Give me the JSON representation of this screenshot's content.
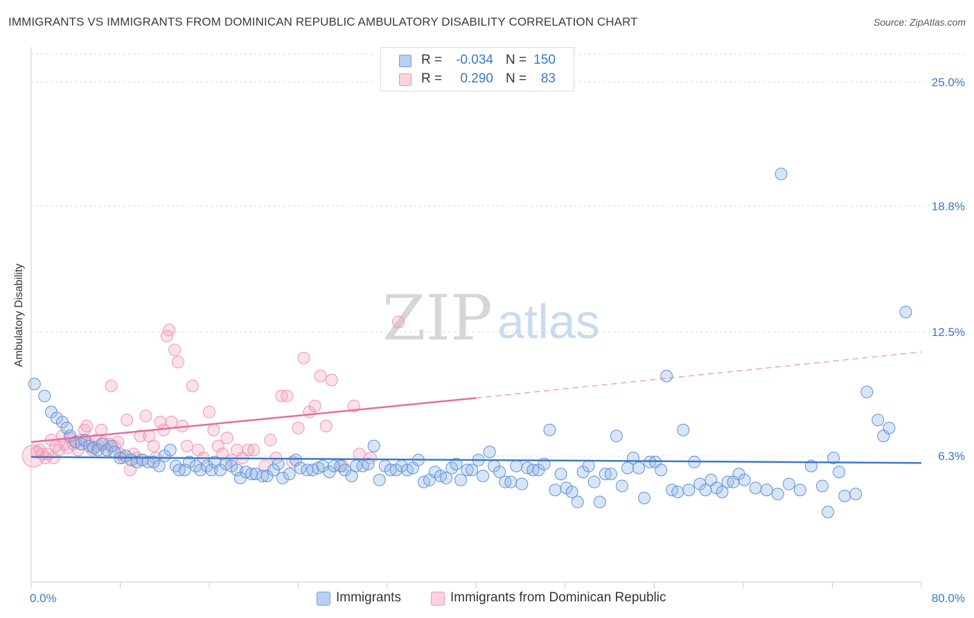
{
  "title": "IMMIGRANTS VS IMMIGRANTS FROM DOMINICAN REPUBLIC AMBULATORY DISABILITY CORRELATION CHART",
  "source": "Source: ZipAtlas.com",
  "watermark": {
    "zip": "ZIP",
    "atlas": "atlas"
  },
  "legend_top": {
    "rows": [
      {
        "r_label": "R =",
        "r_value": "-0.034",
        "n_label": "N =",
        "n_value": "150",
        "color": "#8fb5e6"
      },
      {
        "r_label": "R =",
        "r_value": "0.290",
        "n_label": "N =",
        "n_value": "83",
        "color": "#f4a9c0"
      }
    ]
  },
  "legend_bottom": {
    "items": [
      {
        "label": "Immigrants",
        "color": "#8fb5e6"
      },
      {
        "label": "Immigrants from Dominican Republic",
        "color": "#f4a9c0"
      }
    ]
  },
  "chart_data": {
    "type": "scatter",
    "title": "IMMIGRANTS VS IMMIGRANTS FROM DOMINICAN REPUBLIC AMBULATORY DISABILITY CORRELATION CHART",
    "xlabel": "",
    "ylabel": "Ambulatory Disability",
    "xlim": [
      0,
      80
    ],
    "ylim": [
      0,
      26.4
    ],
    "x_tick_labels": [
      "0.0%",
      "80.0%"
    ],
    "y_ticks": [
      6.3,
      12.5,
      18.8,
      25.0
    ],
    "y_tick_labels": [
      "6.3%",
      "12.5%",
      "18.8%",
      "25.0%"
    ],
    "grid": true,
    "legend_position": "top-center",
    "colors": {
      "immigrants": "#3b78c9",
      "dominican": "#e86c9b"
    },
    "series": [
      {
        "name": "Immigrants",
        "points": [
          [
            0.3,
            9.9
          ],
          [
            1.2,
            9.3
          ],
          [
            1.8,
            8.5
          ],
          [
            2.3,
            8.2
          ],
          [
            2.8,
            8.0
          ],
          [
            3.2,
            7.7
          ],
          [
            3.5,
            7.3
          ],
          [
            4.0,
            7.0
          ],
          [
            4.5,
            6.9
          ],
          [
            4.8,
            7.1
          ],
          [
            5.2,
            6.8
          ],
          [
            5.6,
            6.7
          ],
          [
            6.0,
            6.6
          ],
          [
            6.4,
            6.9
          ],
          [
            6.8,
            6.6
          ],
          [
            7.2,
            6.8
          ],
          [
            7.5,
            6.5
          ],
          [
            8.0,
            6.2
          ],
          [
            8.5,
            6.3
          ],
          [
            9.0,
            6.1
          ],
          [
            9.5,
            6.0
          ],
          [
            10.0,
            6.1
          ],
          [
            10.5,
            6.0
          ],
          [
            11.0,
            6.0
          ],
          [
            11.5,
            5.8
          ],
          [
            12.0,
            6.3
          ],
          [
            12.5,
            6.6
          ],
          [
            13.0,
            5.8
          ],
          [
            13.3,
            5.6
          ],
          [
            13.8,
            5.6
          ],
          [
            14.2,
            6.0
          ],
          [
            14.8,
            5.8
          ],
          [
            15.2,
            5.6
          ],
          [
            15.8,
            5.8
          ],
          [
            16.2,
            5.6
          ],
          [
            16.5,
            6.0
          ],
          [
            17.0,
            5.6
          ],
          [
            17.5,
            5.9
          ],
          [
            18.0,
            5.8
          ],
          [
            18.5,
            5.6
          ],
          [
            18.8,
            5.2
          ],
          [
            19.3,
            5.5
          ],
          [
            19.8,
            5.4
          ],
          [
            20.2,
            5.4
          ],
          [
            20.8,
            5.3
          ],
          [
            21.2,
            5.3
          ],
          [
            21.8,
            5.6
          ],
          [
            22.2,
            5.9
          ],
          [
            22.6,
            5.2
          ],
          [
            23.2,
            5.4
          ],
          [
            23.8,
            6.1
          ],
          [
            24.2,
            5.7
          ],
          [
            24.8,
            5.6
          ],
          [
            25.3,
            5.6
          ],
          [
            25.8,
            5.7
          ],
          [
            26.2,
            5.8
          ],
          [
            26.8,
            5.5
          ],
          [
            27.2,
            5.8
          ],
          [
            27.8,
            5.8
          ],
          [
            28.2,
            5.6
          ],
          [
            28.8,
            5.3
          ],
          [
            29.2,
            5.8
          ],
          [
            29.8,
            5.8
          ],
          [
            30.3,
            5.9
          ],
          [
            30.8,
            6.8
          ],
          [
            31.3,
            5.1
          ],
          [
            31.8,
            5.8
          ],
          [
            32.3,
            5.6
          ],
          [
            32.8,
            5.6
          ],
          [
            33.3,
            5.8
          ],
          [
            33.8,
            5.6
          ],
          [
            34.3,
            5.7
          ],
          [
            34.8,
            6.1
          ],
          [
            35.3,
            5.0
          ],
          [
            35.8,
            5.1
          ],
          [
            36.3,
            5.5
          ],
          [
            36.8,
            5.3
          ],
          [
            37.3,
            5.2
          ],
          [
            37.8,
            5.7
          ],
          [
            38.2,
            5.9
          ],
          [
            38.6,
            5.1
          ],
          [
            39.2,
            5.6
          ],
          [
            39.6,
            5.6
          ],
          [
            40.2,
            6.1
          ],
          [
            40.6,
            5.3
          ],
          [
            41.2,
            6.5
          ],
          [
            41.6,
            5.8
          ],
          [
            42.1,
            5.5
          ],
          [
            42.6,
            5.0
          ],
          [
            43.1,
            5.0
          ],
          [
            43.6,
            5.8
          ],
          [
            44.1,
            4.9
          ],
          [
            44.6,
            5.7
          ],
          [
            45.1,
            5.6
          ],
          [
            45.6,
            5.6
          ],
          [
            46.1,
            5.9
          ],
          [
            46.6,
            7.6
          ],
          [
            47.1,
            4.6
          ],
          [
            47.6,
            5.4
          ],
          [
            48.1,
            4.7
          ],
          [
            48.6,
            4.5
          ],
          [
            49.1,
            4.0
          ],
          [
            49.6,
            5.5
          ],
          [
            50.1,
            5.8
          ],
          [
            50.6,
            5.0
          ],
          [
            51.1,
            4.0
          ],
          [
            51.6,
            5.4
          ],
          [
            52.1,
            5.4
          ],
          [
            52.6,
            7.3
          ],
          [
            53.1,
            4.8
          ],
          [
            53.6,
            5.7
          ],
          [
            54.1,
            6.2
          ],
          [
            54.6,
            5.7
          ],
          [
            55.1,
            4.2
          ],
          [
            55.6,
            6.0
          ],
          [
            56.1,
            6.0
          ],
          [
            56.6,
            5.6
          ],
          [
            57.1,
            10.3
          ],
          [
            57.6,
            4.6
          ],
          [
            58.1,
            4.5
          ],
          [
            58.6,
            7.6
          ],
          [
            59.1,
            4.6
          ],
          [
            59.6,
            6.0
          ],
          [
            60.1,
            4.9
          ],
          [
            60.6,
            4.6
          ],
          [
            61.1,
            5.1
          ],
          [
            61.6,
            4.7
          ],
          [
            62.1,
            4.5
          ],
          [
            62.6,
            5.0
          ],
          [
            63.1,
            5.0
          ],
          [
            63.6,
            5.4
          ],
          [
            64.1,
            5.1
          ],
          [
            65.1,
            4.7
          ],
          [
            66.1,
            4.6
          ],
          [
            67.1,
            4.4
          ],
          [
            67.4,
            20.4
          ],
          [
            68.1,
            4.9
          ],
          [
            69.1,
            4.6
          ],
          [
            70.1,
            5.8
          ],
          [
            71.1,
            4.8
          ],
          [
            71.6,
            3.5
          ],
          [
            72.1,
            6.2
          ],
          [
            72.6,
            5.5
          ],
          [
            73.1,
            4.3
          ],
          [
            74.1,
            4.4
          ],
          [
            75.1,
            9.5
          ],
          [
            76.1,
            8.1
          ],
          [
            76.6,
            7.3
          ],
          [
            77.1,
            7.7
          ],
          [
            78.6,
            13.5
          ]
        ],
        "trend": {
          "x": [
            0,
            80
          ],
          "y": [
            6.25,
            5.95
          ]
        }
      },
      {
        "name": "Immigrants from Dominican Republic",
        "points": [
          [
            0.2,
            6.3
          ],
          [
            0.5,
            6.5
          ],
          [
            0.8,
            6.6
          ],
          [
            1.0,
            6.4
          ],
          [
            1.3,
            6.2
          ],
          [
            1.5,
            6.4
          ],
          [
            1.8,
            7.1
          ],
          [
            2.0,
            6.2
          ],
          [
            2.2,
            6.8
          ],
          [
            2.5,
            6.6
          ],
          [
            2.8,
            7.3
          ],
          [
            3.0,
            6.9
          ],
          [
            3.3,
            6.7
          ],
          [
            3.5,
            7.2
          ],
          [
            3.8,
            6.9
          ],
          [
            4.0,
            7.0
          ],
          [
            4.2,
            6.6
          ],
          [
            4.5,
            7.1
          ],
          [
            4.8,
            7.6
          ],
          [
            5.0,
            7.8
          ],
          [
            5.2,
            6.9
          ],
          [
            5.5,
            6.6
          ],
          [
            5.8,
            7.1
          ],
          [
            6.0,
            6.8
          ],
          [
            6.3,
            7.6
          ],
          [
            6.5,
            7.0
          ],
          [
            6.8,
            6.6
          ],
          [
            7.0,
            6.9
          ],
          [
            7.2,
            9.8
          ],
          [
            7.5,
            6.8
          ],
          [
            7.8,
            7.0
          ],
          [
            8.0,
            6.4
          ],
          [
            8.3,
            6.2
          ],
          [
            8.6,
            8.1
          ],
          [
            8.9,
            5.6
          ],
          [
            9.2,
            6.4
          ],
          [
            9.5,
            6.2
          ],
          [
            9.8,
            7.3
          ],
          [
            10.0,
            6.1
          ],
          [
            10.3,
            8.3
          ],
          [
            10.6,
            7.3
          ],
          [
            11.0,
            6.8
          ],
          [
            11.2,
            6.2
          ],
          [
            11.6,
            8.0
          ],
          [
            11.9,
            7.6
          ],
          [
            12.2,
            12.3
          ],
          [
            12.4,
            12.6
          ],
          [
            12.6,
            8.0
          ],
          [
            12.9,
            11.6
          ],
          [
            13.2,
            11.0
          ],
          [
            13.6,
            7.8
          ],
          [
            14.0,
            6.8
          ],
          [
            14.5,
            9.8
          ],
          [
            15.0,
            6.6
          ],
          [
            15.5,
            6.2
          ],
          [
            16.0,
            8.5
          ],
          [
            16.4,
            7.6
          ],
          [
            16.8,
            6.8
          ],
          [
            17.2,
            6.4
          ],
          [
            17.6,
            7.2
          ],
          [
            18.0,
            6.1
          ],
          [
            18.5,
            6.6
          ],
          [
            19.0,
            6.2
          ],
          [
            19.5,
            6.6
          ],
          [
            20.0,
            6.6
          ],
          [
            21.0,
            5.8
          ],
          [
            21.5,
            7.1
          ],
          [
            22.0,
            6.2
          ],
          [
            22.5,
            9.3
          ],
          [
            23.0,
            9.3
          ],
          [
            23.5,
            6.0
          ],
          [
            24.0,
            7.7
          ],
          [
            24.5,
            11.2
          ],
          [
            25.0,
            8.5
          ],
          [
            25.5,
            8.8
          ],
          [
            26.0,
            10.3
          ],
          [
            26.5,
            7.8
          ],
          [
            27.0,
            10.1
          ],
          [
            28.0,
            5.8
          ],
          [
            29.0,
            8.8
          ],
          [
            29.5,
            6.4
          ],
          [
            30.5,
            6.2
          ],
          [
            33.0,
            13.0
          ]
        ],
        "trend": {
          "x": [
            0,
            40
          ],
          "y": [
            7.0,
            9.2
          ]
        },
        "trend_dashed": {
          "x": [
            40,
            80
          ],
          "y": [
            9.2,
            11.5
          ]
        }
      }
    ]
  }
}
